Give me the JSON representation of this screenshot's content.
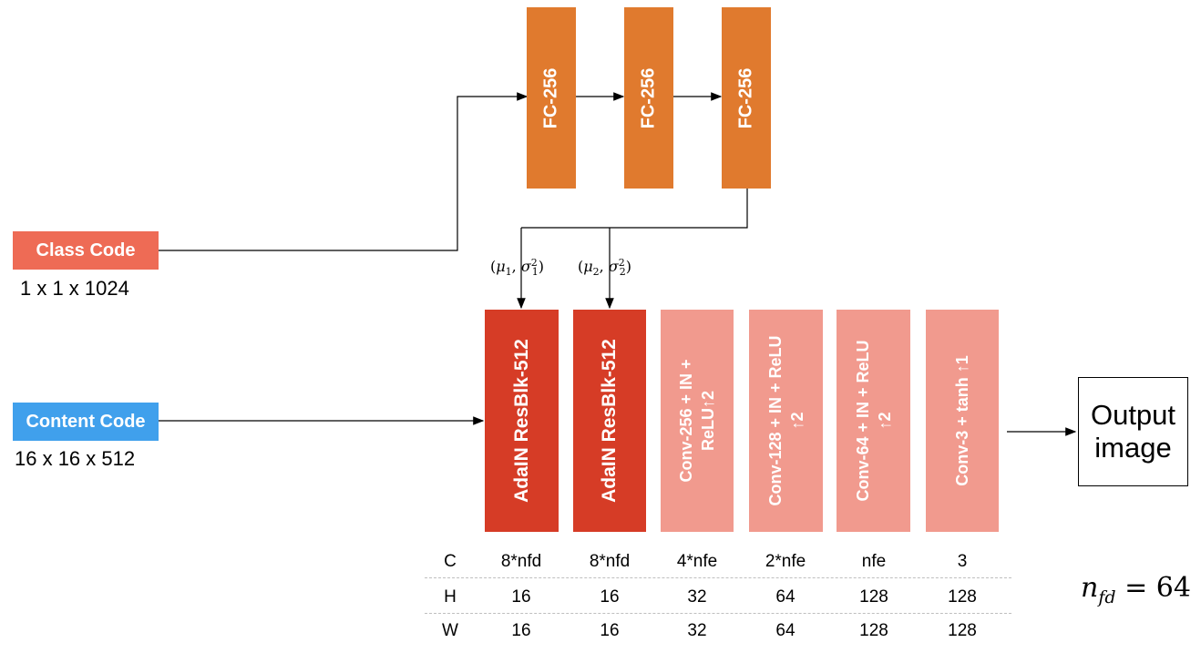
{
  "colors": {
    "fc": "#e07a2e",
    "class_code": "#ee6b55",
    "content_code": "#40a0ec",
    "adain": "#d63c26",
    "conv": "#f19a8e"
  },
  "inputs": {
    "class_code": {
      "label": "Class Code",
      "dims": "1 x 1 x 1024"
    },
    "content_code": {
      "label": "Content Code",
      "dims": "16 x 16 x 512"
    }
  },
  "fc_layers": [
    "FC-256",
    "FC-256",
    "FC-256"
  ],
  "params": {
    "p1": {
      "mu": "μ",
      "sub": "1",
      "sigma": "σ",
      "sup": "2"
    },
    "p2": {
      "mu": "μ",
      "sub": "2",
      "sigma": "σ",
      "sup": "2"
    }
  },
  "decoder_blocks": [
    {
      "line1": "AdaIN ResBlk-512",
      "line2": ""
    },
    {
      "line1": "AdaIN ResBlk-512",
      "line2": ""
    },
    {
      "line1": "Conv-256 + IN +",
      "line2": "ReLU↑2"
    },
    {
      "line1": "Conv-128 + IN + ReLU",
      "line2": "↑2"
    },
    {
      "line1": "Conv-64 + IN + ReLU",
      "line2": "↑2"
    },
    {
      "line1": "Conv-3 + tanh ↑1",
      "line2": ""
    }
  ],
  "output": {
    "line1": "Output",
    "line2": "image"
  },
  "table": {
    "row_headers": [
      "C",
      "H",
      "W"
    ],
    "rows": [
      [
        "8*nfd",
        "8*nfd",
        "4*nfe",
        "2*nfe",
        "nfe",
        "3"
      ],
      [
        "16",
        "16",
        "32",
        "64",
        "128",
        "128"
      ],
      [
        "16",
        "16",
        "32",
        "64",
        "128",
        "128"
      ]
    ]
  },
  "nfd_note": {
    "symbol": "n",
    "subscript": "fd",
    "equals": "= 64"
  }
}
